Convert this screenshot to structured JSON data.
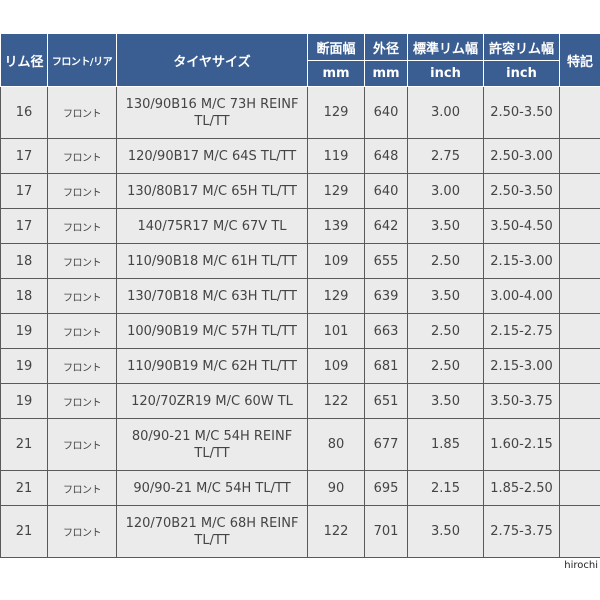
{
  "headers": {
    "rim_diameter": "リム径",
    "front_rear": "フロント/リア",
    "tire_size": "タイヤサイズ",
    "section_width": "断面幅",
    "outer_diameter": "外径",
    "std_rim_width": "標準リム幅",
    "allowed_rim_width": "許容リム幅",
    "notes": "特記",
    "unit_mm_1": "mm",
    "unit_mm_2": "mm",
    "unit_inch_1": "inch",
    "unit_inch_2": "inch"
  },
  "rows": [
    {
      "rim": "16",
      "pos": "フロント",
      "size": "130/90B16 M/C 73H REINF TL/TT",
      "width": "129",
      "outer": "640",
      "std": "3.00",
      "allowed": "2.50-3.50"
    },
    {
      "rim": "17",
      "pos": "フロント",
      "size": "120/90B17 M/C 64S TL/TT",
      "width": "119",
      "outer": "648",
      "std": "2.75",
      "allowed": "2.50-3.00"
    },
    {
      "rim": "17",
      "pos": "フロント",
      "size": "130/80B17 M/C 65H TL/TT",
      "width": "129",
      "outer": "640",
      "std": "3.00",
      "allowed": "2.50-3.50"
    },
    {
      "rim": "17",
      "pos": "フロント",
      "size": "140/75R17 M/C 67V TL",
      "width": "139",
      "outer": "642",
      "std": "3.50",
      "allowed": "3.50-4.50"
    },
    {
      "rim": "18",
      "pos": "フロント",
      "size": "110/90B18 M/C 61H TL/TT",
      "width": "109",
      "outer": "655",
      "std": "2.50",
      "allowed": "2.15-3.00"
    },
    {
      "rim": "18",
      "pos": "フロント",
      "size": "130/70B18 M/C 63H TL/TT",
      "width": "129",
      "outer": "639",
      "std": "3.50",
      "allowed": "3.00-4.00"
    },
    {
      "rim": "19",
      "pos": "フロント",
      "size": "100/90B19 M/C 57H TL/TT",
      "width": "101",
      "outer": "663",
      "std": "2.50",
      "allowed": "2.15-2.75"
    },
    {
      "rim": "19",
      "pos": "フロント",
      "size": "110/90B19 M/C 62H TL/TT",
      "width": "109",
      "outer": "681",
      "std": "2.50",
      "allowed": "2.15-3.00"
    },
    {
      "rim": "19",
      "pos": "フロント",
      "size": "120/70ZR19 M/C 60W TL",
      "width": "122",
      "outer": "651",
      "std": "3.50",
      "allowed": "3.50-3.75"
    },
    {
      "rim": "21",
      "pos": "フロント",
      "size": "80/90-21 M/C 54H REINF TL/TT",
      "width": "80",
      "outer": "677",
      "std": "1.85",
      "allowed": "1.60-2.15"
    },
    {
      "rim": "21",
      "pos": "フロント",
      "size": "90/90-21 M/C 54H TL/TT",
      "width": "90",
      "outer": "695",
      "std": "2.15",
      "allowed": "1.85-2.50"
    },
    {
      "rim": "21",
      "pos": "フロント",
      "size": "120/70B21 M/C 68H REINF TL/TT",
      "width": "122",
      "outer": "701",
      "std": "3.50",
      "allowed": "2.75-3.75"
    }
  ],
  "watermark": "hirochi"
}
